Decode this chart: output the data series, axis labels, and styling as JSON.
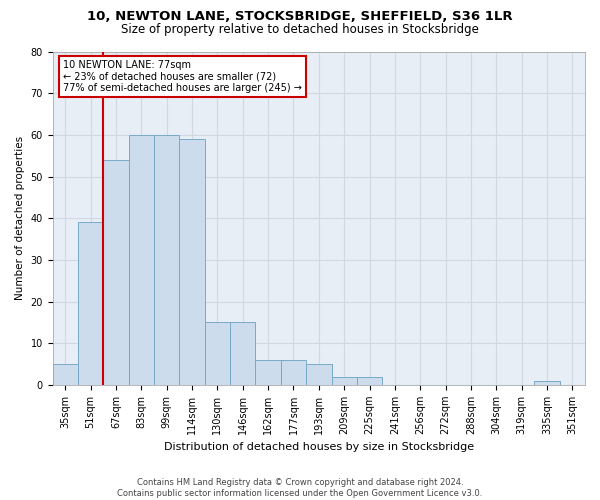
{
  "title_line1": "10, NEWTON LANE, STOCKSBRIDGE, SHEFFIELD, S36 1LR",
  "title_line2": "Size of property relative to detached houses in Stocksbridge",
  "xlabel": "Distribution of detached houses by size in Stocksbridge",
  "ylabel": "Number of detached properties",
  "categories": [
    "35sqm",
    "51sqm",
    "67sqm",
    "83sqm",
    "99sqm",
    "114sqm",
    "130sqm",
    "146sqm",
    "162sqm",
    "177sqm",
    "193sqm",
    "209sqm",
    "225sqm",
    "241sqm",
    "256sqm",
    "272sqm",
    "288sqm",
    "304sqm",
    "319sqm",
    "335sqm",
    "351sqm"
  ],
  "values": [
    5,
    39,
    54,
    60,
    60,
    59,
    15,
    15,
    6,
    6,
    5,
    2,
    2,
    0,
    0,
    0,
    0,
    0,
    0,
    1,
    0
  ],
  "bar_color": "#ccdcec",
  "bar_edge_color": "#7aaac8",
  "vline_x": 1.5,
  "vline_color": "#cc0000",
  "annotation_text": "10 NEWTON LANE: 77sqm\n← 23% of detached houses are smaller (72)\n77% of semi-detached houses are larger (245) →",
  "annotation_box_color": "#ffffff",
  "annotation_box_edge": "#cc0000",
  "ylim": [
    0,
    80
  ],
  "yticks": [
    0,
    10,
    20,
    30,
    40,
    50,
    60,
    70,
    80
  ],
  "grid_color": "#d0d8e4",
  "bg_color": "#e8eef5",
  "footer": "Contains HM Land Registry data © Crown copyright and database right 2024.\nContains public sector information licensed under the Open Government Licence v3.0.",
  "title_fontsize": 9.5,
  "subtitle_fontsize": 8.5,
  "tick_fontsize": 7,
  "ylabel_fontsize": 7.5,
  "xlabel_fontsize": 8,
  "annotation_fontsize": 7,
  "footer_fontsize": 6
}
